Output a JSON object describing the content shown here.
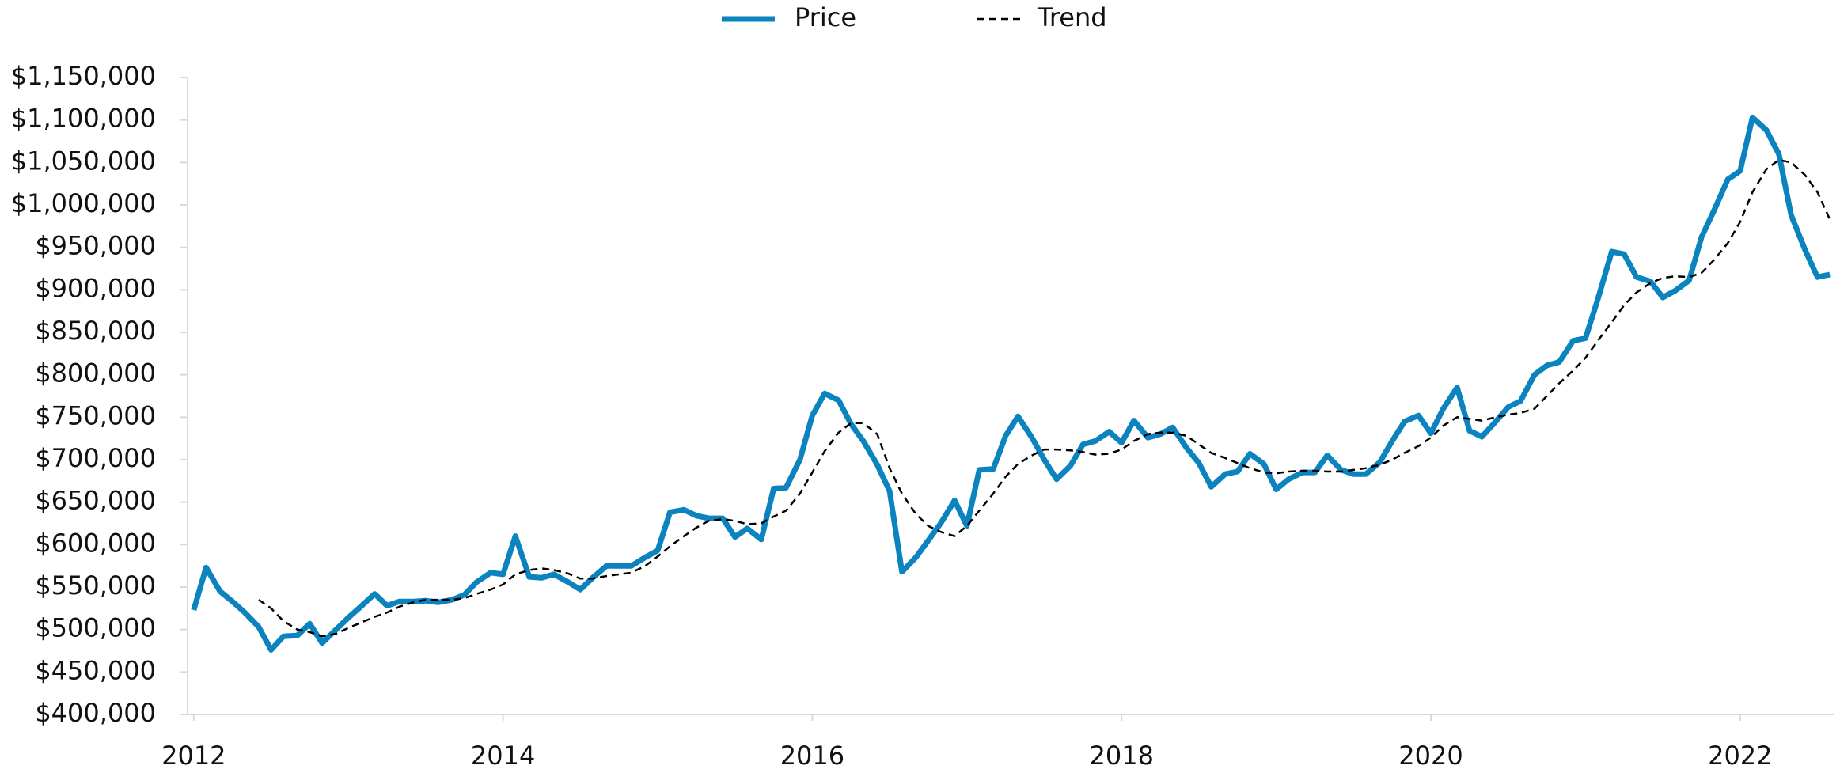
{
  "chart_data": {
    "type": "line",
    "x": [
      2012,
      2012.08,
      2012.17,
      2012.25,
      2012.33,
      2012.42,
      2012.5,
      2012.58,
      2012.67,
      2012.75,
      2012.83,
      2012.92,
      2013,
      2013.08,
      2013.17,
      2013.25,
      2013.33,
      2013.42,
      2013.5,
      2013.58,
      2013.67,
      2013.75,
      2013.83,
      2013.92,
      2014,
      2014.08,
      2014.17,
      2014.25,
      2014.33,
      2014.42,
      2014.5,
      2014.58,
      2014.67,
      2014.75,
      2014.83,
      2014.92,
      2015,
      2015.08,
      2015.17,
      2015.25,
      2015.33,
      2015.42,
      2015.5,
      2015.58,
      2015.67,
      2015.75,
      2015.83,
      2015.92,
      2016,
      2016.08,
      2016.17,
      2016.25,
      2016.33,
      2016.42,
      2016.5,
      2016.58,
      2016.67,
      2016.75,
      2016.83,
      2016.92,
      2017,
      2017.08,
      2017.17,
      2017.25,
      2017.33,
      2017.42,
      2017.5,
      2017.58,
      2017.67,
      2017.75,
      2017.83,
      2017.92,
      2018,
      2018.08,
      2018.17,
      2018.25,
      2018.33,
      2018.42,
      2018.5,
      2018.58,
      2018.67,
      2018.75,
      2018.83,
      2018.92,
      2019,
      2019.08,
      2019.17,
      2019.25,
      2019.33,
      2019.42,
      2019.5,
      2019.58,
      2019.67,
      2019.75,
      2019.83,
      2019.92,
      2020,
      2020.08,
      2020.17,
      2020.25,
      2020.33,
      2020.42,
      2020.5,
      2020.58,
      2020.67,
      2020.75,
      2020.83,
      2020.92,
      2021,
      2021.08,
      2021.17,
      2021.25,
      2021.33,
      2021.42,
      2021.5,
      2021.58,
      2021.67,
      2021.75,
      2021.83,
      2021.92,
      2022,
      2022.08,
      2022.17,
      2022.25,
      2022.33,
      2022.42,
      2022.5,
      2022.58
    ],
    "series": [
      {
        "name": "Price",
        "color": "#0a83bf",
        "style": "solid",
        "values": [
          523000,
          573000,
          545000,
          533000,
          520000,
          503000,
          476000,
          492000,
          493000,
          507000,
          484000,
          500000,
          514000,
          527000,
          542000,
          528000,
          533000,
          533000,
          534000,
          532000,
          535000,
          541000,
          556000,
          567000,
          565000,
          610000,
          562000,
          561000,
          565000,
          556000,
          547000,
          561000,
          575000,
          575000,
          575000,
          585000,
          593000,
          638000,
          641000,
          634000,
          631000,
          631000,
          609000,
          619000,
          606000,
          666000,
          667000,
          700000,
          752000,
          778000,
          770000,
          742000,
          722000,
          694000,
          663000,
          568000,
          585000,
          605000,
          625000,
          652000,
          622000,
          688000,
          689000,
          728000,
          751000,
          726000,
          700000,
          677000,
          693000,
          718000,
          722000,
          733000,
          720000,
          746000,
          726000,
          730000,
          738000,
          714000,
          696000,
          668000,
          683000,
          686000,
          707000,
          695000,
          665000,
          677000,
          685000,
          685000,
          705000,
          688000,
          683000,
          683000,
          697000,
          722000,
          745000,
          752000,
          731000,
          760000,
          785000,
          734000,
          727000,
          745000,
          762000,
          769000,
          800000,
          811000,
          815000,
          840000,
          843000,
          889000,
          945000,
          942000,
          915000,
          910000,
          891000,
          899000,
          911000,
          962000,
          993000,
          1030000,
          1040000,
          1103000,
          1088000,
          1060000,
          988000,
          947000,
          915000,
          918000
        ]
      },
      {
        "name": "Trend",
        "color": "#000000",
        "style": "dashed",
        "values": [
          null,
          null,
          null,
          null,
          null,
          535000,
          525000,
          510000,
          500000,
          497000,
          492000,
          495000,
          502000,
          508000,
          515000,
          520000,
          527000,
          532000,
          535000,
          535000,
          535000,
          537000,
          542000,
          547000,
          553000,
          565000,
          570000,
          572000,
          570000,
          566000,
          560000,
          560000,
          563000,
          565000,
          567000,
          575000,
          586000,
          598000,
          610000,
          620000,
          628000,
          630000,
          628000,
          624000,
          625000,
          633000,
          640000,
          660000,
          685000,
          710000,
          732000,
          743000,
          743000,
          730000,
          690000,
          660000,
          636000,
          622000,
          615000,
          610000,
          622000,
          640000,
          660000,
          680000,
          695000,
          705000,
          712000,
          712000,
          711000,
          709000,
          706000,
          707000,
          712000,
          722000,
          730000,
          732000,
          732000,
          728000,
          718000,
          708000,
          702000,
          696000,
          690000,
          685000,
          684000,
          686000,
          687000,
          687000,
          686000,
          686000,
          688000,
          690000,
          694000,
          700000,
          708000,
          716000,
          726000,
          740000,
          750000,
          748000,
          746000,
          750000,
          753000,
          755000,
          760000,
          775000,
          790000,
          805000,
          820000,
          840000,
          862000,
          882000,
          897000,
          908000,
          914000,
          916000,
          915000,
          920000,
          935000,
          955000,
          980000,
          1015000,
          1042000,
          1053000,
          1050000,
          1035000,
          1015000,
          983000
        ]
      }
    ],
    "xlim": [
      2011.96,
      2022.61
    ],
    "xticks": [
      2012,
      2014,
      2016,
      2018,
      2020,
      2022
    ],
    "ylim": [
      400000,
      1150000
    ],
    "yticks": [
      {
        "value": 400000,
        "label": "$400,000"
      },
      {
        "value": 450000,
        "label": "$450,000"
      },
      {
        "value": 500000,
        "label": "$500,000"
      },
      {
        "value": 550000,
        "label": "$550,000"
      },
      {
        "value": 600000,
        "label": "$600,000"
      },
      {
        "value": 650000,
        "label": "$650,000"
      },
      {
        "value": 700000,
        "label": "$700,000"
      },
      {
        "value": 750000,
        "label": "$750,000"
      },
      {
        "value": 800000,
        "label": "$800,000"
      },
      {
        "value": 850000,
        "label": "$850,000"
      },
      {
        "value": 900000,
        "label": "$900,000"
      },
      {
        "value": 950000,
        "label": "$950,000"
      },
      {
        "value": 1000000,
        "label": "$1,000,000"
      },
      {
        "value": 1050000,
        "label": "$1,050,000"
      },
      {
        "value": 1100000,
        "label": "$1,100,000"
      },
      {
        "value": 1150000,
        "label": "$1,150,000"
      }
    ],
    "grid": false,
    "legend": "top"
  }
}
